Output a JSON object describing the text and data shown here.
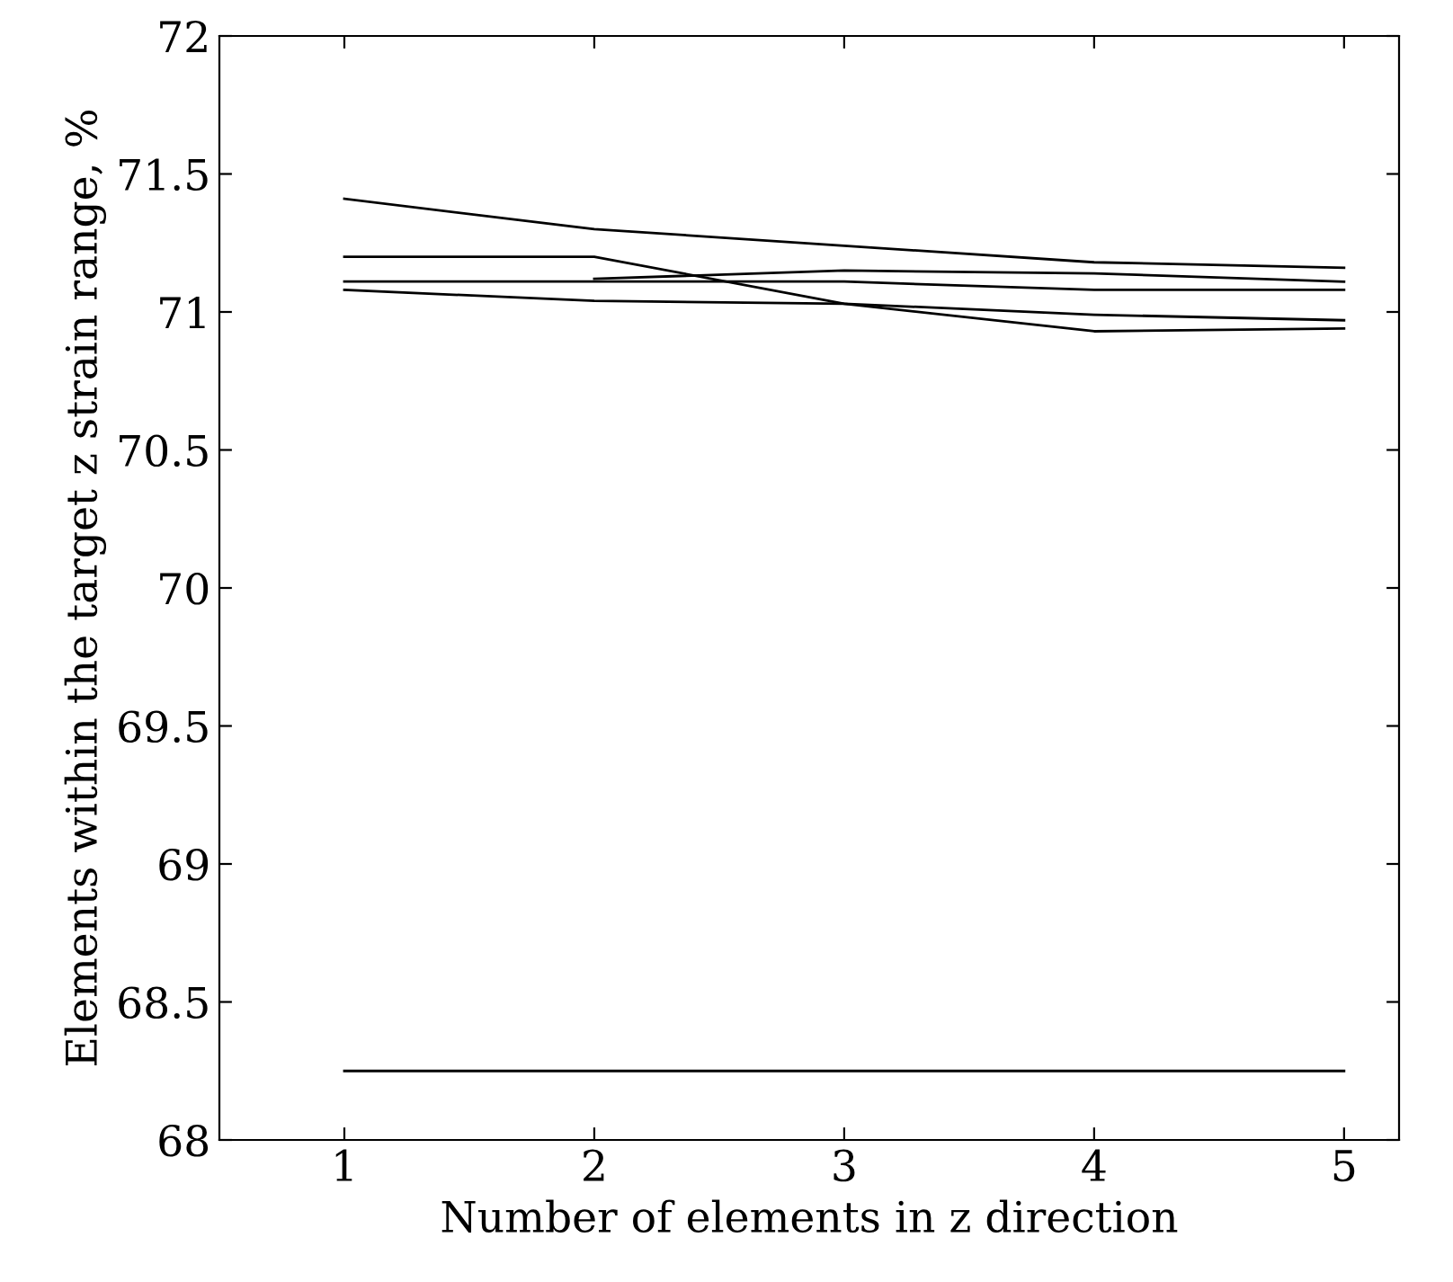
{
  "chart_data": {
    "type": "line",
    "xlabel": "Number of elements in z direction",
    "ylabel": "Elements within the target z strain range, %",
    "x": [
      1,
      2,
      3,
      4,
      5
    ],
    "series": [
      {
        "color": "#000000",
        "values": [
          71.41,
          71.3,
          71.24,
          71.18,
          71.16
        ]
      },
      {
        "color": "#000000",
        "values": [
          71.2,
          71.2,
          71.03,
          70.93,
          70.94
        ]
      },
      {
        "color": "#000000",
        "values": [
          71.11,
          71.11,
          71.11,
          71.08,
          71.08
        ]
      },
      {
        "color": "#000000",
        "values": [
          null,
          71.12,
          71.15,
          71.14,
          71.11
        ]
      },
      {
        "color": "#000000",
        "values": [
          71.08,
          71.04,
          71.03,
          70.99,
          70.97
        ]
      },
      {
        "color": "#000000",
        "values": [
          68.25,
          68.25,
          68.25,
          68.25,
          68.25
        ]
      }
    ],
    "xlim": [
      0.5,
      5.22
    ],
    "ylim": [
      68,
      72
    ],
    "xticks": [
      1,
      2,
      3,
      4,
      5
    ],
    "yticks": [
      68,
      68.5,
      69,
      69.5,
      70,
      70.5,
      71,
      71.5,
      72
    ],
    "grid": false,
    "legend": false,
    "marker": "none",
    "line_style": "solid"
  }
}
